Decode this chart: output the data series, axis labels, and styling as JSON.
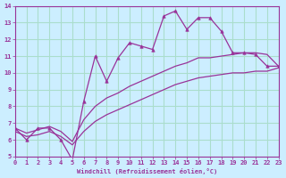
{
  "xlabel": "Windchill (Refroidissement éolien,°C)",
  "xlim": [
    0,
    23
  ],
  "ylim": [
    5,
    14
  ],
  "xticks": [
    0,
    1,
    2,
    3,
    4,
    5,
    6,
    7,
    8,
    9,
    10,
    11,
    12,
    13,
    14,
    15,
    16,
    17,
    18,
    19,
    20,
    21,
    22,
    23
  ],
  "yticks": [
    5,
    6,
    7,
    8,
    9,
    10,
    11,
    12,
    13,
    14
  ],
  "bg_color": "#cceeff",
  "grid_color": "#aaddcc",
  "line_color": "#993399",
  "line1_x": [
    0,
    1,
    2,
    3,
    4,
    5,
    6,
    7,
    8,
    9,
    10,
    11,
    12,
    13,
    14,
    15,
    16,
    17,
    18,
    19,
    20,
    21,
    22,
    23
  ],
  "line1_y": [
    6.7,
    6.0,
    6.7,
    6.7,
    6.0,
    4.8,
    8.3,
    11.0,
    9.5,
    10.9,
    11.8,
    11.6,
    11.4,
    13.4,
    13.7,
    12.6,
    13.3,
    13.3,
    12.5,
    11.2,
    11.2,
    11.1,
    10.4,
    10.4
  ],
  "line2_x": [
    0,
    1,
    2,
    3,
    4,
    5,
    6,
    7,
    8,
    9,
    10,
    11,
    12,
    13,
    14,
    15,
    16,
    17,
    18,
    19,
    20,
    21,
    22,
    23
  ],
  "line2_y": [
    6.7,
    6.4,
    6.6,
    6.8,
    6.5,
    5.9,
    7.2,
    8.0,
    8.5,
    8.8,
    9.2,
    9.5,
    9.8,
    10.1,
    10.4,
    10.6,
    10.9,
    10.9,
    11.0,
    11.1,
    11.2,
    11.2,
    11.1,
    10.4
  ],
  "line3_x": [
    0,
    1,
    2,
    3,
    4,
    5,
    6,
    7,
    8,
    9,
    10,
    11,
    12,
    13,
    14,
    15,
    16,
    17,
    18,
    19,
    20,
    21,
    22,
    23
  ],
  "line3_y": [
    6.5,
    6.2,
    6.3,
    6.5,
    6.2,
    5.7,
    6.5,
    7.1,
    7.5,
    7.8,
    8.1,
    8.4,
    8.7,
    9.0,
    9.3,
    9.5,
    9.7,
    9.8,
    9.9,
    10.0,
    10.0,
    10.1,
    10.1,
    10.3
  ]
}
